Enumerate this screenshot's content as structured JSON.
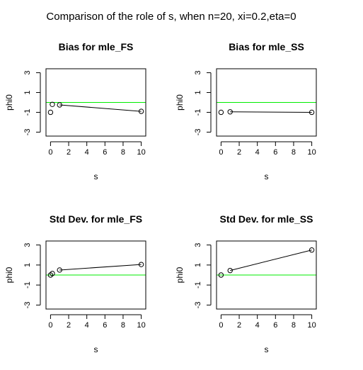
{
  "figure": {
    "title": "Comparison of the role of s, when n=20, xi=0.2,eta=0"
  },
  "chart_data": [
    {
      "type": "line",
      "title": "Bias for mle_FS",
      "xlabel": "s",
      "ylabel": "phi0",
      "xlim": [
        -0.5,
        10.5
      ],
      "ylim": [
        -3.4,
        3.4
      ],
      "xticks": [
        "0",
        "2",
        "4",
        "6",
        "8",
        "10"
      ],
      "yticks": [
        "-3",
        "-1",
        "1",
        "3"
      ],
      "reference_line": {
        "y": 0,
        "color": "#00ee00"
      },
      "points": {
        "x": [
          0,
          0.2,
          1,
          10
        ],
        "y": [
          -1.0,
          -0.2,
          -0.25,
          -0.9
        ]
      },
      "line": {
        "x": [
          1,
          10
        ],
        "y": [
          -0.25,
          -0.9
        ]
      }
    },
    {
      "type": "line",
      "title": "Bias for mle_SS",
      "xlabel": "s",
      "ylabel": "phi0",
      "xlim": [
        -0.5,
        10.5
      ],
      "ylim": [
        -3.4,
        3.4
      ],
      "xticks": [
        "0",
        "2",
        "4",
        "6",
        "8",
        "10"
      ],
      "yticks": [
        "-3",
        "-1",
        "1",
        "3"
      ],
      "reference_line": {
        "y": 0,
        "color": "#00ee00"
      },
      "points": {
        "x": [
          0,
          1,
          10
        ],
        "y": [
          -1.0,
          -0.95,
          -1.0
        ]
      },
      "line": {
        "x": [
          1,
          10
        ],
        "y": [
          -0.95,
          -1.0
        ]
      }
    },
    {
      "type": "line",
      "title": "Std Dev. for mle_FS",
      "xlabel": "s",
      "ylabel": "phi0",
      "xlim": [
        -0.5,
        10.5
      ],
      "ylim": [
        -3.4,
        3.4
      ],
      "xticks": [
        "0",
        "2",
        "4",
        "6",
        "8",
        "10"
      ],
      "yticks": [
        "-3",
        "-1",
        "1",
        "3"
      ],
      "reference_line": {
        "y": 0,
        "color": "#00ee00"
      },
      "points": {
        "x": [
          0,
          0.2,
          1,
          10
        ],
        "y": [
          0.0,
          0.15,
          0.5,
          1.05
        ]
      },
      "line": {
        "x": [
          1,
          10
        ],
        "y": [
          0.5,
          1.05
        ]
      }
    },
    {
      "type": "line",
      "title": "Std Dev. for mle_SS",
      "xlabel": "s",
      "ylabel": "phi0",
      "xlim": [
        -0.5,
        10.5
      ],
      "ylim": [
        -3.4,
        3.4
      ],
      "xticks": [
        "0",
        "2",
        "4",
        "6",
        "8",
        "10"
      ],
      "yticks": [
        "-3",
        "-1",
        "1",
        "3"
      ],
      "reference_line": {
        "y": 0,
        "color": "#00ee00"
      },
      "points": {
        "x": [
          0,
          1,
          10
        ],
        "y": [
          0.0,
          0.45,
          2.5
        ]
      },
      "line": {
        "x": [
          1,
          10
        ],
        "y": [
          0.45,
          2.5
        ]
      }
    }
  ]
}
